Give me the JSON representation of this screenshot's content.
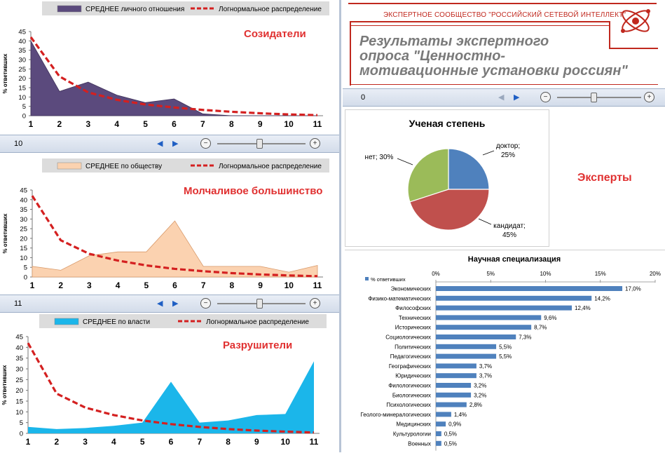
{
  "colors": {
    "creators": "#5b4a7d",
    "majority": "#fbd2b0",
    "destroyers": "#1bb6ea",
    "lognormal": "#d42020",
    "panel_title": "#e03030",
    "bars": "#4f81bd",
    "pie_doctor": "#4f81bd",
    "pie_candidate": "#c0504d",
    "pie_none": "#9bbb59",
    "brand_red": "#c0281e"
  },
  "chart_data": [
    {
      "type": "area",
      "title": "Созидатели",
      "ylabel": "% ответивших",
      "x": [
        1,
        2,
        3,
        4,
        5,
        6,
        7,
        8,
        9,
        10,
        11
      ],
      "ylim": [
        0,
        45
      ],
      "yticks": [
        0,
        5,
        10,
        15,
        20,
        25,
        30,
        35,
        40,
        45
      ],
      "legend_position": "top",
      "series": [
        {
          "name": "СРЕДНЕЕ личного отношения",
          "kind": "area",
          "values": [
            40,
            13,
            18,
            11,
            7,
            9,
            1,
            0,
            0,
            0,
            0
          ]
        },
        {
          "name": "Логнормальное распределение",
          "kind": "dashed-line",
          "values": [
            42,
            21,
            12.5,
            8.5,
            6,
            4.4,
            3.1,
            2.1,
            1.3,
            0.7,
            0.3
          ]
        }
      ]
    },
    {
      "type": "area",
      "title": "Молчаливое большинство",
      "ylabel": "% ответивших",
      "x": [
        1,
        2,
        3,
        4,
        5,
        6,
        7,
        8,
        9,
        10,
        11
      ],
      "ylim": [
        0,
        45
      ],
      "yticks": [
        0,
        5,
        10,
        15,
        20,
        25,
        30,
        35,
        40,
        45
      ],
      "legend_position": "top",
      "series": [
        {
          "name": "СРЕДНЕЕ по обществу",
          "kind": "area",
          "values": [
            5.5,
            3.5,
            11,
            13,
            13,
            29,
            5.5,
            5.5,
            5.5,
            2.5,
            6
          ]
        },
        {
          "name": "Логнормальное распределение",
          "kind": "dashed-line",
          "values": [
            42,
            19,
            12,
            8.5,
            6,
            4.2,
            3,
            2,
            1.3,
            0.8,
            0.4
          ]
        }
      ]
    },
    {
      "type": "area",
      "title": "Разрушители",
      "ylabel": "% ответивших",
      "x": [
        1,
        2,
        3,
        4,
        5,
        6,
        7,
        8,
        9,
        10,
        11
      ],
      "ylim": [
        0,
        45
      ],
      "yticks": [
        0,
        5,
        10,
        15,
        20,
        25,
        30,
        35,
        40,
        45
      ],
      "legend_position": "top",
      "series": [
        {
          "name": "СРЕДНЕЕ по власти",
          "kind": "area",
          "values": [
            3,
            2,
            2.5,
            3.5,
            5,
            24,
            5,
            6,
            8.5,
            9,
            33.5
          ]
        },
        {
          "name": "Логнормальное распределение",
          "kind": "dashed-line",
          "values": [
            42,
            18.5,
            12,
            8.5,
            6,
            4.3,
            3,
            2,
            1.3,
            0.8,
            0.4
          ]
        }
      ]
    },
    {
      "type": "pie",
      "title": "Ученая степень",
      "categories": [
        "доктор;",
        "кандидат;",
        "нет;"
      ],
      "values": [
        25,
        45,
        30
      ],
      "value_labels": [
        "25%",
        "45%",
        "30%"
      ]
    },
    {
      "type": "bar",
      "orientation": "horizontal",
      "title": "Научная специализация",
      "legend": "% ответивших",
      "xlim": [
        0,
        20
      ],
      "xticks": [
        "0%",
        "5%",
        "10%",
        "15%",
        "20%"
      ],
      "xtick_values": [
        0,
        5,
        10,
        15,
        20
      ],
      "categories": [
        "Экономических",
        "Физико-математических",
        "Философских",
        "Технических",
        "Исторических",
        "Социологических",
        "Политических",
        "Педагогических",
        "Географических",
        "Юридических",
        "Филологических",
        "Биологических",
        "Психологических",
        "Геолого-минералогических",
        "Медицинских",
        "Культурологии",
        "Военных"
      ],
      "values": [
        17.0,
        14.2,
        12.4,
        9.6,
        8.7,
        7.3,
        5.5,
        5.5,
        3.7,
        3.7,
        3.2,
        3.2,
        2.8,
        1.4,
        0.9,
        0.5,
        0.5
      ],
      "value_labels": [
        "17,0%",
        "14,2%",
        "12,4%",
        "9,6%",
        "8,7%",
        "7,3%",
        "5,5%",
        "5,5%",
        "3,7%",
        "3,7%",
        "3,2%",
        "3,2%",
        "2,8%",
        "1,4%",
        "0,9%",
        "0,5%",
        "0,5%"
      ]
    }
  ],
  "toolbars": {
    "creators_page": "10",
    "majority_page": "11",
    "brand_page": "0"
  },
  "brand": {
    "org": "ЭКСПЕРТНОЕ СООБЩЕСТВО \"РОССИЙСКИЙ СЕТЕВОЙ ИНТЕЛЛЕКТ\"",
    "title_line1": "Результаты экспертного",
    "title_line2": "опроса \"Ценностно-",
    "title_line3": "мотивационные установки россиян\""
  },
  "experts_label": "Эксперты"
}
